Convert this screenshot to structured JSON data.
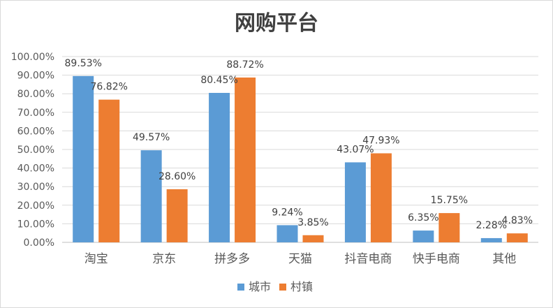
{
  "chart_data": {
    "type": "bar",
    "title": "网购平台",
    "categories": [
      "淘宝",
      "京东",
      "拼多多",
      "天猫",
      "抖音电商",
      "快手电商",
      "其他"
    ],
    "series": [
      {
        "name": "城市",
        "values": [
          89.53,
          49.57,
          80.45,
          9.24,
          43.07,
          6.35,
          2.28
        ],
        "labels": [
          "89.53%",
          "49.57%",
          "80.45%",
          "9.24%",
          "43.07%",
          "6.35%",
          "2.28%"
        ],
        "color": "#5b9bd5"
      },
      {
        "name": "村镇",
        "values": [
          76.82,
          28.6,
          88.72,
          3.85,
          47.93,
          15.75,
          4.83
        ],
        "labels": [
          "76.82%",
          "28.60%",
          "88.72%",
          "3.85%",
          "47.93%",
          "15.75%",
          "4.83%"
        ],
        "color": "#ed7d31"
      }
    ],
    "ylim": [
      0,
      100
    ],
    "yticks": [
      "0.00%",
      "10.00%",
      "20.00%",
      "30.00%",
      "40.00%",
      "50.00%",
      "60.00%",
      "70.00%",
      "80.00%",
      "90.00%",
      "100.00%"
    ],
    "xlabel": "",
    "ylabel": "",
    "grid": true,
    "legend_position": "bottom"
  }
}
